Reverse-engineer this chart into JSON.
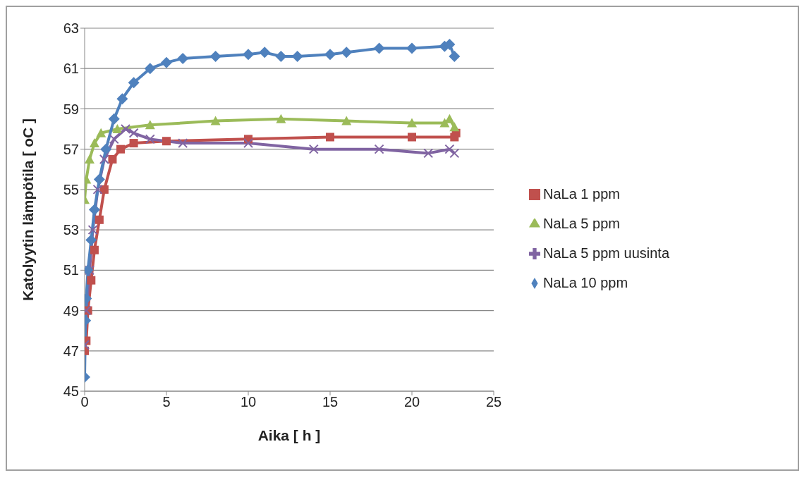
{
  "chart_data": {
    "type": "line",
    "xlabel": "Aika [ h ]",
    "ylabel": "Katolyytin lämpötila [ oC ]",
    "xlim": [
      0,
      25
    ],
    "xticks": [
      0,
      5,
      10,
      15,
      20,
      25
    ],
    "ylim": [
      45,
      63
    ],
    "yticks": [
      45,
      47,
      49,
      51,
      53,
      55,
      57,
      59,
      61,
      63
    ],
    "grid": "y",
    "legend": "right",
    "series": [
      {
        "name": "NaLa 1 ppm",
        "color": "#c0504d",
        "marker": "square",
        "x": [
          0,
          0.1,
          0.2,
          0.4,
          0.6,
          0.9,
          1.2,
          1.7,
          2.2,
          3,
          5,
          10,
          15,
          20,
          22.6,
          22.7
        ],
        "values": [
          47.0,
          47.5,
          49,
          50.5,
          52,
          53.5,
          55,
          56.5,
          57.0,
          57.3,
          57.4,
          57.5,
          57.6,
          57.6,
          57.6,
          57.8
        ]
      },
      {
        "name": "NaLa 5 ppm",
        "color": "#9bbb59",
        "marker": "triangle",
        "x": [
          0,
          0.1,
          0.3,
          0.6,
          1,
          2,
          4,
          8,
          12,
          16,
          20,
          22,
          22.3,
          22.6
        ],
        "values": [
          54.5,
          55.5,
          56.5,
          57.3,
          57.8,
          58.0,
          58.2,
          58.4,
          58.5,
          58.4,
          58.3,
          58.3,
          58.5,
          58.1
        ]
      },
      {
        "name": "NaLa 5 ppm uusinta",
        "color": "#8064a2",
        "marker": "cross",
        "x": [
          0,
          0.1,
          0.3,
          0.5,
          0.8,
          1.2,
          1.8,
          2.5,
          3,
          4,
          6,
          10,
          14,
          18,
          21,
          22.3,
          22.6
        ],
        "values": [
          47.3,
          49,
          51,
          53,
          55,
          56.5,
          57.5,
          58.0,
          57.8,
          57.5,
          57.3,
          57.3,
          57.0,
          57.0,
          56.8,
          57.0,
          56.8
        ]
      },
      {
        "name": "NaLa 10 ppm",
        "color": "#4f81bd",
        "marker": "diamond",
        "x": [
          0,
          0.05,
          0.1,
          0.2,
          0.4,
          0.6,
          0.9,
          1.3,
          1.8,
          2.3,
          3,
          4,
          5,
          6,
          8,
          10,
          11,
          12,
          13,
          15,
          16,
          18,
          20,
          22,
          22.3,
          22.6
        ],
        "values": [
          45.7,
          48.5,
          49.6,
          51,
          52.5,
          54,
          55.5,
          57,
          58.5,
          59.5,
          60.3,
          61,
          61.3,
          61.5,
          61.6,
          61.7,
          61.8,
          61.6,
          61.6,
          61.7,
          61.8,
          62,
          62,
          62.1,
          62.2,
          61.6
        ]
      }
    ]
  }
}
